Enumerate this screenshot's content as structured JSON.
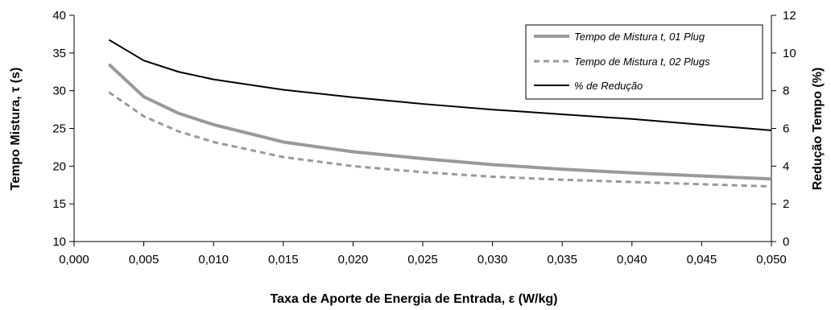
{
  "chart_data": {
    "type": "line",
    "xlabel": "Taxa de Aporte de Energia de Entrada, ε (W/kg)",
    "ylabel_left": "Tempo Mistura, τ (s)",
    "ylabel_right": "Redução Tempo (%)",
    "xlim": [
      0.0,
      0.05
    ],
    "ylim_left": [
      10,
      40
    ],
    "ylim_right": [
      0,
      12
    ],
    "x_ticks": [
      "0,000",
      "0,005",
      "0,010",
      "0,015",
      "0,020",
      "0,025",
      "0,030",
      "0,035",
      "0,040",
      "0,045",
      "0,050"
    ],
    "y_left_ticks": [
      "10",
      "15",
      "20",
      "25",
      "30",
      "35",
      "40"
    ],
    "y_right_ticks": [
      "0",
      "2",
      "4",
      "6",
      "8",
      "10",
      "12"
    ],
    "grid": false,
    "legend_position": "top-right",
    "series": [
      {
        "name": "Tempo de Mistura t, 01 Plug",
        "axis": "left",
        "style": "solid-thick",
        "color": "#999999",
        "x": [
          0.0025,
          0.005,
          0.0075,
          0.01,
          0.015,
          0.02,
          0.025,
          0.03,
          0.035,
          0.04,
          0.045,
          0.05
        ],
        "y": [
          33.5,
          29.2,
          27.0,
          25.5,
          23.2,
          21.9,
          21.0,
          20.2,
          19.6,
          19.1,
          18.7,
          18.3
        ]
      },
      {
        "name": "Tempo de Mistura t, 02 Plugs",
        "axis": "left",
        "style": "dashed",
        "color": "#999999",
        "x": [
          0.0025,
          0.005,
          0.0075,
          0.01,
          0.015,
          0.02,
          0.025,
          0.03,
          0.035,
          0.04,
          0.045,
          0.05
        ],
        "y": [
          29.8,
          26.6,
          24.6,
          23.2,
          21.2,
          20.0,
          19.2,
          18.6,
          18.2,
          17.9,
          17.6,
          17.3
        ]
      },
      {
        "name": "% de Redução",
        "axis": "right",
        "style": "solid",
        "color": "#000000",
        "x": [
          0.0025,
          0.005,
          0.0075,
          0.01,
          0.015,
          0.02,
          0.025,
          0.03,
          0.035,
          0.04,
          0.045,
          0.05
        ],
        "y": [
          10.7,
          9.6,
          9.0,
          8.6,
          8.05,
          7.65,
          7.3,
          7.0,
          6.75,
          6.5,
          6.2,
          5.9
        ]
      }
    ]
  }
}
